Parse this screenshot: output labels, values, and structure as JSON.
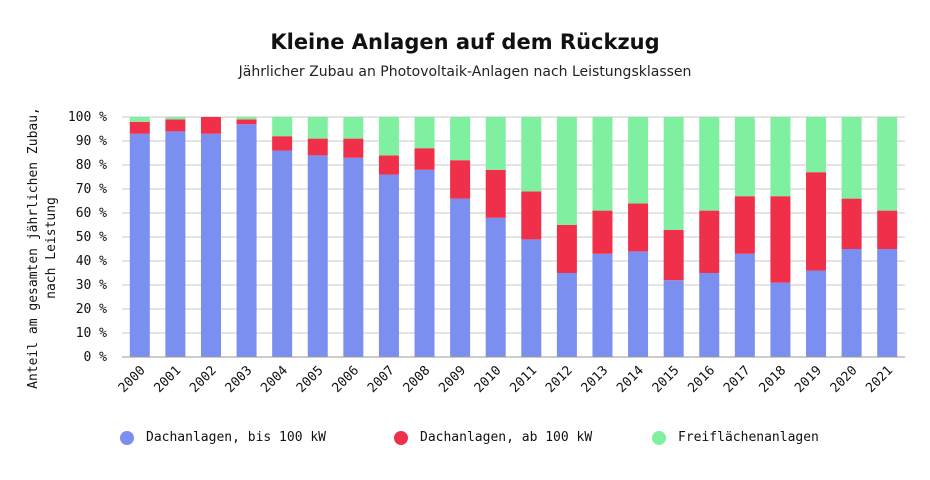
{
  "chart_data": {
    "type": "bar",
    "stacked": true,
    "title": "Kleine Anlagen auf dem Rückzug",
    "subtitle": "Jährlicher Zubau an Photovoltaik-Anlagen nach Leistungsklassen",
    "ylabel_line1": "Anteil am gesamten jährlichen Zubau,",
    "ylabel_line2": "nach Leistung",
    "ylim": [
      0,
      100
    ],
    "yticks": [
      0,
      10,
      20,
      30,
      40,
      50,
      60,
      70,
      80,
      90,
      100
    ],
    "ytick_suffix": " %",
    "grid": true,
    "legend_position": "bottom",
    "categories": [
      "2000",
      "2001",
      "2002",
      "2003",
      "2004",
      "2005",
      "2006",
      "2007",
      "2008",
      "2009",
      "2010",
      "2011",
      "2012",
      "2013",
      "2014",
      "2015",
      "2016",
      "2017",
      "2018",
      "2019",
      "2020",
      "2021"
    ],
    "series": [
      {
        "name": "Dachanlagen, bis 100 kW",
        "color": "#7b8ff0",
        "values": [
          93,
          94,
          93,
          97,
          86,
          84,
          83,
          76,
          78,
          66,
          58,
          49,
          35,
          43,
          44,
          32,
          35,
          43,
          31,
          36,
          45,
          45
        ]
      },
      {
        "name": "Dachanlagen, ab 100 kW",
        "color": "#f0304a",
        "values": [
          5,
          5,
          7,
          2,
          6,
          7,
          8,
          8,
          9,
          16,
          20,
          20,
          20,
          18,
          20,
          21,
          26,
          24,
          36,
          41,
          21,
          16
        ]
      },
      {
        "name": "Freiflächenanlagen",
        "color": "#7ff0a0",
        "values": [
          2,
          1,
          0,
          1,
          8,
          9,
          9,
          16,
          13,
          18,
          22,
          31,
          45,
          39,
          36,
          47,
          39,
          33,
          33,
          23,
          34,
          39
        ]
      }
    ]
  }
}
